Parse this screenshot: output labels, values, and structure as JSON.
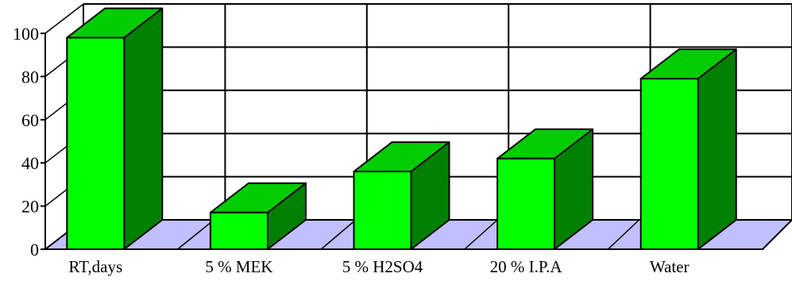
{
  "chart_data": {
    "type": "bar",
    "style": "3d",
    "categories": [
      "RT,days",
      "5 % MEK",
      "5 % H2SO4",
      "20 % I.P.A",
      "Water"
    ],
    "values": [
      98,
      17,
      36,
      42,
      79
    ],
    "ylim": [
      0,
      100
    ],
    "yticks": [
      0,
      20,
      40,
      60,
      80,
      100
    ],
    "title": "",
    "xlabel": "",
    "ylabel": "",
    "grid": true,
    "colors": {
      "bar_front": "#00ff00",
      "bar_top": "#00cc00",
      "bar_side": "#008000",
      "floor": "#c0c0ff",
      "grid": "#000000"
    }
  }
}
